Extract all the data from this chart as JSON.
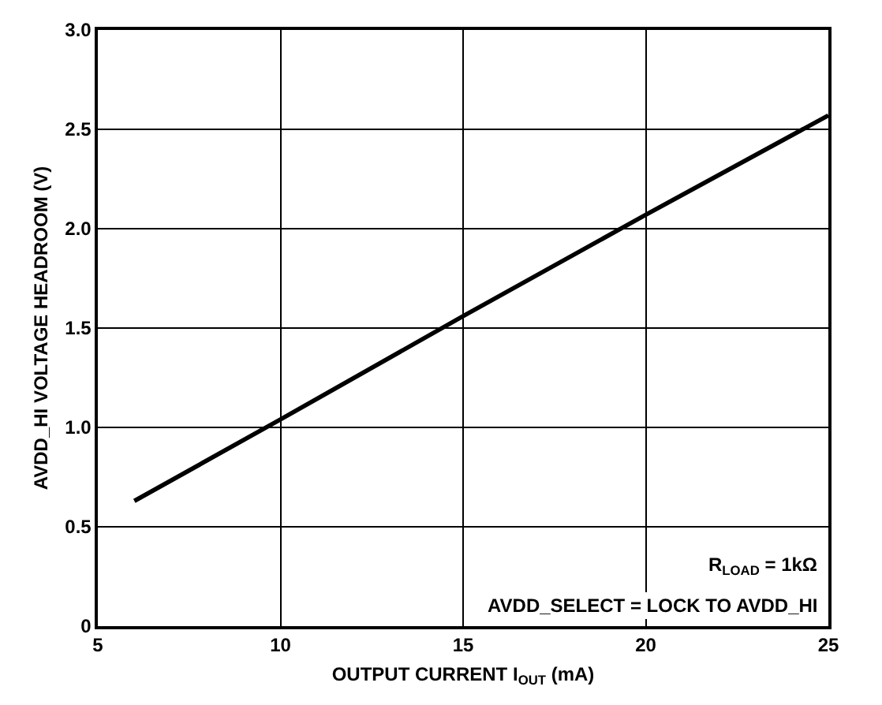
{
  "chart_data": {
    "type": "line",
    "xlabel": "OUTPUT CURRENT I$_{OUT}$ (mA)",
    "ylabel": "AVDD_HI VOLTAGE HEADROOM (V)",
    "x": [
      6,
      10,
      15,
      20,
      25
    ],
    "series": [
      {
        "color": "#000000",
        "values": [
          0.63,
          1.04,
          1.56,
          2.07,
          2.57
        ]
      }
    ],
    "xlim": [
      5,
      25
    ],
    "xticks": [
      5,
      10,
      15,
      20,
      25
    ],
    "ylim": [
      0,
      3.0
    ],
    "yticks": [
      0,
      0.5,
      {
        "value": 1.0,
        "label": "1.0"
      },
      1.5,
      {
        "value": 2.0,
        "label": "2.0"
      },
      2.5,
      {
        "value": 3.0,
        "label": "3.0"
      }
    ],
    "grid": true,
    "marker": "none",
    "line_style": "solid",
    "annotations": [
      "R$_{LOAD}$ = 1kΩ",
      "AVDD_SELECT = LOCK TO AVDD_HI"
    ]
  }
}
